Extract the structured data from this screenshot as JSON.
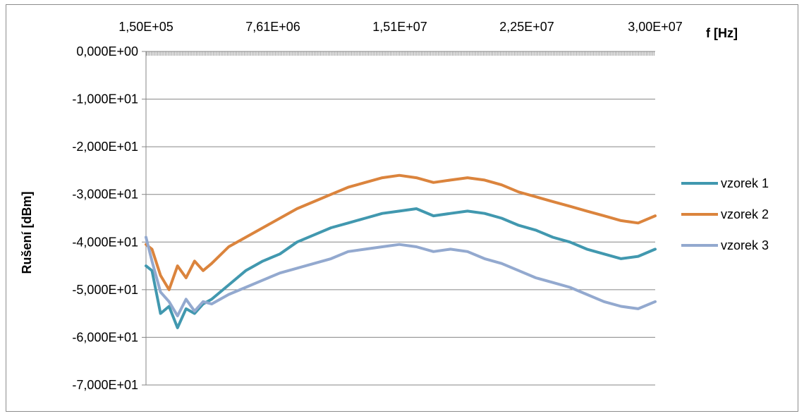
{
  "chart_data": {
    "type": "line",
    "title": "",
    "xlabel": "f [Hz]",
    "ylabel": "Rušení [dBm]",
    "x_tick_labels": [
      "1,50E+05",
      "7,61E+06",
      "1,51E+07",
      "2,25E+07",
      "3,00E+07"
    ],
    "y_tick_labels": [
      "0,000E+00",
      "-1,000E+01",
      "-2,000E+01",
      "-3,000E+01",
      "-4,000E+01",
      "-5,000E+01",
      "-6,000E+01",
      "-7,000E+01"
    ],
    "xlim": [
      150000,
      30000000
    ],
    "ylim": [
      -70,
      0
    ],
    "grid": "horizontal",
    "legend_position": "right",
    "x": [
      150000,
      500000,
      1000000,
      1500000,
      2000000,
      2500000,
      3000000,
      3500000,
      4000000,
      5000000,
      6000000,
      7000000,
      8000000,
      9000000,
      10000000,
      11000000,
      12000000,
      13000000,
      14000000,
      15000000,
      16000000,
      17000000,
      18000000,
      19000000,
      20000000,
      21000000,
      22000000,
      23000000,
      24000000,
      25000000,
      26000000,
      27000000,
      28000000,
      29000000,
      30000000
    ],
    "series": [
      {
        "name": "vzorek 1",
        "color": "#4198AF",
        "values": [
          -45.0,
          -46.0,
          -55.0,
          -53.5,
          -58.0,
          -54.0,
          -55.0,
          -53.0,
          -52.0,
          -49.0,
          -46.0,
          -44.0,
          -42.5,
          -40.0,
          -38.5,
          -37.0,
          -36.0,
          -35.0,
          -34.0,
          -33.5,
          -33.0,
          -34.5,
          -34.0,
          -33.5,
          -34.0,
          -35.0,
          -36.5,
          -37.5,
          -39.0,
          -40.0,
          -41.5,
          -42.5,
          -43.5,
          -43.0,
          -41.5
        ]
      },
      {
        "name": "vzorek 2",
        "color": "#DB843D",
        "values": [
          -40.5,
          -41.5,
          -47.0,
          -50.0,
          -45.0,
          -47.5,
          -44.0,
          -46.0,
          -44.5,
          -41.0,
          -39.0,
          -37.0,
          -35.0,
          -33.0,
          -31.5,
          -30.0,
          -28.5,
          -27.5,
          -26.5,
          -26.0,
          -26.5,
          -27.5,
          -27.0,
          -26.5,
          -27.0,
          -28.0,
          -29.5,
          -30.5,
          -31.5,
          -32.5,
          -33.5,
          -34.5,
          -35.5,
          -36.0,
          -34.5
        ]
      },
      {
        "name": "vzorek 3",
        "color": "#93A9CF",
        "values": [
          -39.0,
          -44.0,
          -50.5,
          -52.5,
          -55.5,
          -52.0,
          -54.5,
          -52.5,
          -53.0,
          -51.0,
          -49.5,
          -48.0,
          -46.5,
          -45.5,
          -44.5,
          -43.5,
          -42.0,
          -41.5,
          -41.0,
          -40.5,
          -41.0,
          -42.0,
          -41.5,
          -42.0,
          -43.5,
          -44.5,
          -46.0,
          -47.5,
          -48.5,
          -49.5,
          -51.0,
          -52.5,
          -53.5,
          -54.0,
          -52.5
        ]
      }
    ]
  }
}
